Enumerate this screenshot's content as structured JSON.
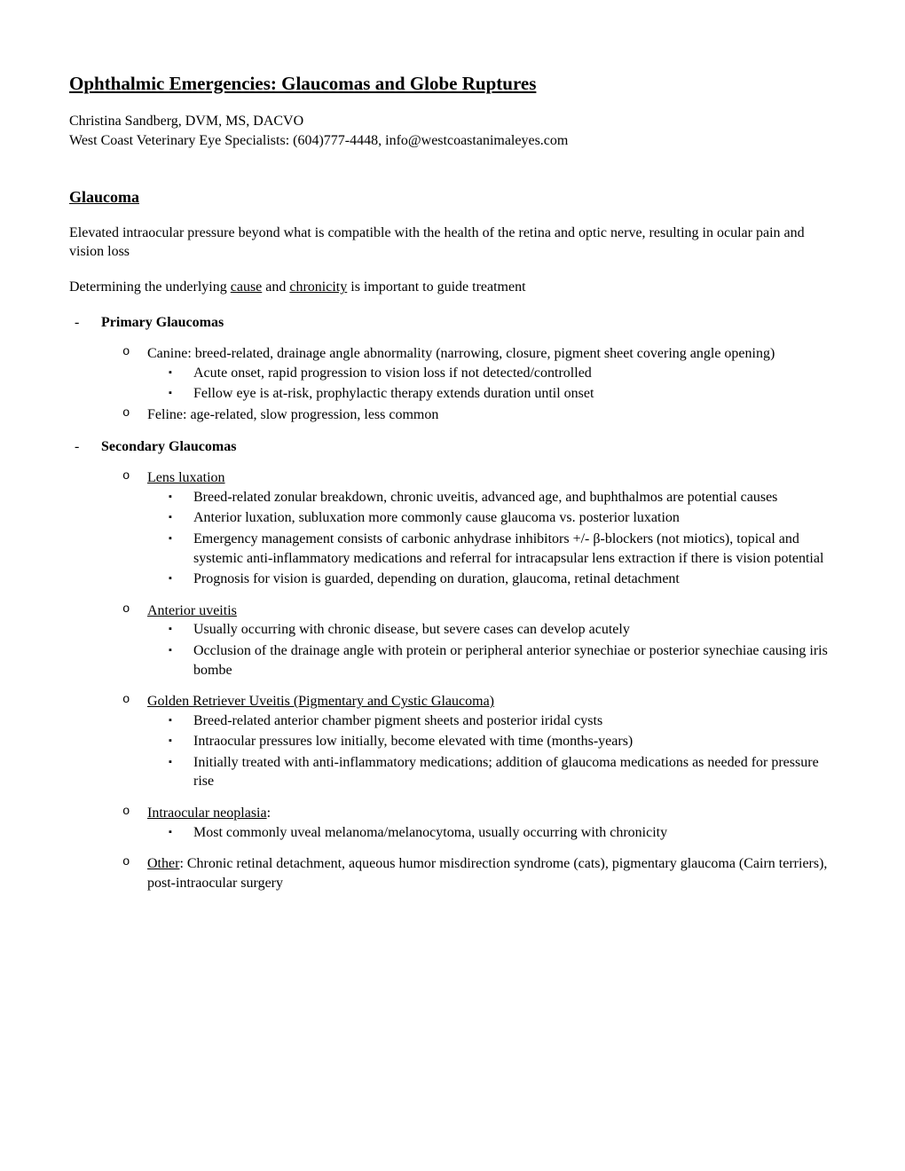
{
  "title": "Ophthalmic Emergencies: Glaucomas and Globe Ruptures",
  "author": "Christina Sandberg, DVM, MS, DACVO",
  "org": "West Coast Veterinary Eye Specialists: (604)777-4448, info@westcoastanimaleyes.com",
  "section1": {
    "heading": "Glaucoma",
    "para1": "Elevated intraocular pressure beyond what is compatible with the health of the retina and optic nerve, resulting in ocular pain and vision loss",
    "para2_pre": "Determining the underlying ",
    "para2_u1": "cause",
    "para2_mid": " and ",
    "para2_u2": "chronicity",
    "para2_post": " is important to guide treatment"
  },
  "primary": {
    "heading": "Primary Glaucomas",
    "canine": "Canine: breed-related, drainage angle abnormality (narrowing, closure, pigment sheet covering angle opening)",
    "canine_b1": "Acute onset, rapid progression to vision loss if not detected/controlled",
    "canine_b2": "Fellow eye is at-risk, prophylactic therapy extends duration until onset",
    "feline": "Feline: age-related, slow progression, less common"
  },
  "secondary": {
    "heading": "Secondary Glaucomas",
    "lens": {
      "title": "Lens luxation",
      "b1": "Breed-related zonular breakdown, chronic uveitis, advanced age, and buphthalmos are potential causes",
      "b2": "Anterior luxation, subluxation more commonly cause glaucoma vs. posterior luxation",
      "b3": "Emergency management consists of carbonic anhydrase inhibitors +/- β-blockers (not miotics), topical and systemic anti-inflammatory medications and referral for intracapsular lens extraction if there is vision potential",
      "b4": "Prognosis for vision is guarded, depending on duration, glaucoma, retinal detachment"
    },
    "uveitis": {
      "title": "Anterior uveitis",
      "b1": "Usually occurring with chronic disease, but severe cases can develop acutely",
      "b2": "Occlusion of the drainage angle with protein or peripheral anterior synechiae or posterior synechiae causing iris bombe"
    },
    "golden": {
      "title": "Golden Retriever Uveitis (Pigmentary and Cystic Glaucoma)",
      "b1": "Breed-related anterior chamber pigment sheets and posterior iridal cysts",
      "b2": "Intraocular pressures low initially, become elevated with time (months-years)",
      "b3": "Initially treated with anti-inflammatory medications; addition of glaucoma medications as needed for pressure rise"
    },
    "neoplasia": {
      "title": "Intraocular neoplasia",
      "colon": ":",
      "b1": "Most commonly uveal melanoma/melanocytoma, usually occurring with chronicity"
    },
    "other": {
      "title": "Other",
      "rest": ": Chronic retinal detachment, aqueous humor misdirection syndrome (cats), pigmentary glaucoma (Cairn terriers), post-intraocular surgery"
    }
  }
}
